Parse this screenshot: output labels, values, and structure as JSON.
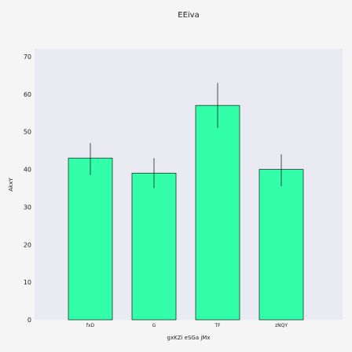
{
  "chart_data": {
    "type": "bar",
    "title": "EEiva",
    "xlabel": "gxKZi eSGa jMx",
    "ylabel": "AkxY",
    "categories": [
      "fxD",
      "G",
      "TF",
      "zNQY"
    ],
    "values": [
      43,
      39,
      57,
      40
    ],
    "error_low": [
      38.5,
      35,
      51,
      35.5
    ],
    "error_high": [
      47,
      43,
      63,
      44
    ],
    "ylim": [
      0,
      70
    ],
    "yticks": [
      0,
      10,
      20,
      30,
      40,
      50,
      60,
      70
    ],
    "grid": false,
    "colors": {
      "bar": "#33ffaa",
      "bar_edge": "#1a3a2a",
      "plot_bg": "#eaeaf2",
      "page_bg": "#f5f5f5",
      "error": "#222222"
    }
  }
}
